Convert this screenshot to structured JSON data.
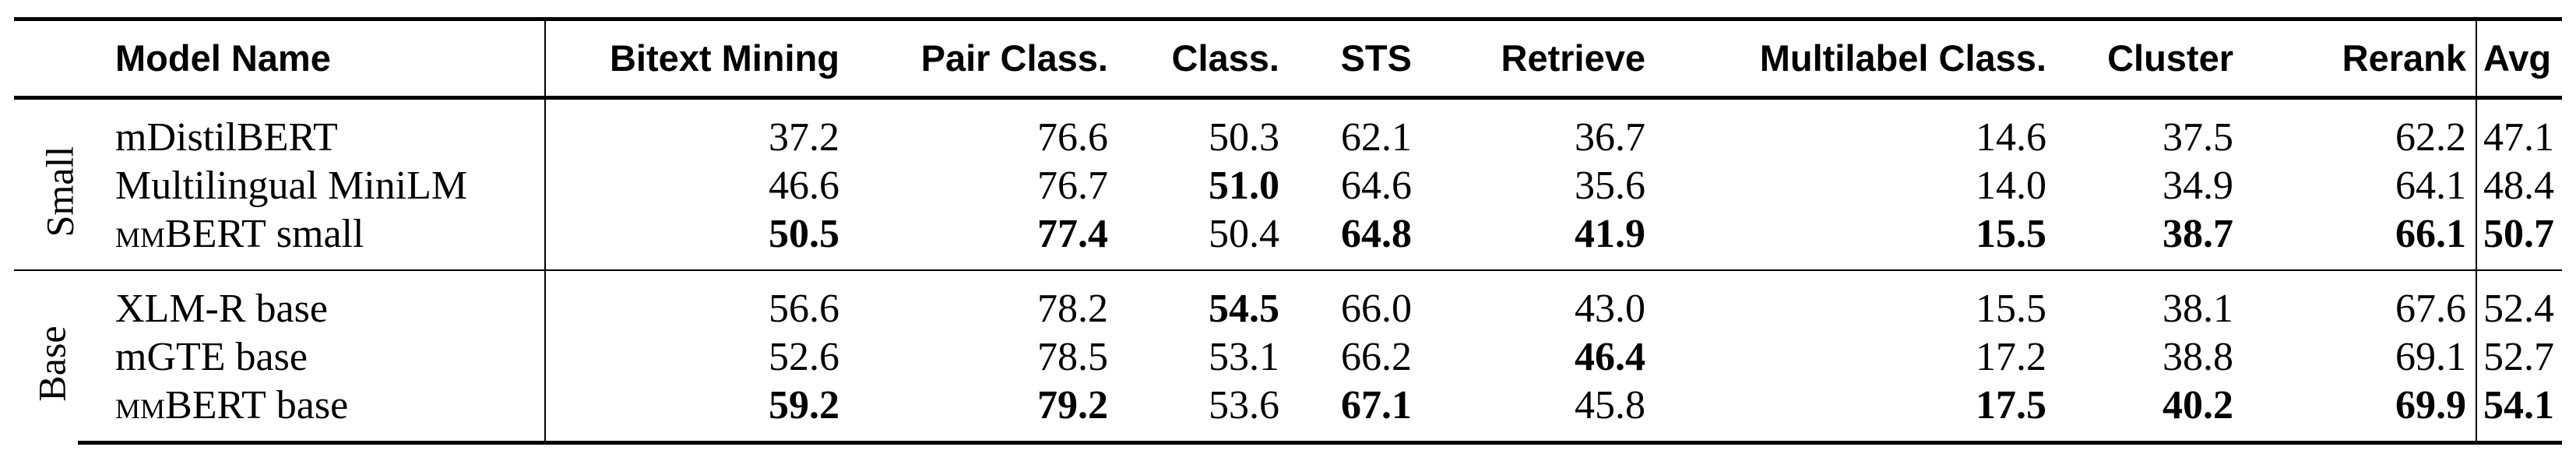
{
  "headers": {
    "model_name": "Model Name",
    "bitext_mining": "Bitext Mining",
    "pair_class": "Pair Class.",
    "class": "Class.",
    "sts": "STS",
    "retrieve": "Retrieve",
    "multilabel_class": "Multilabel Class.",
    "cluster": "Cluster",
    "rerank": "Rerank",
    "avg": "Avg"
  },
  "groups": [
    {
      "label": "Small",
      "rows": [
        {
          "name_prefix": "",
          "name": "mDistilBERT",
          "bitext": "37.2",
          "pair": "76.6",
          "class": "50.3",
          "sts": "62.1",
          "retrieve": "36.7",
          "multilabel": "14.6",
          "cluster": "37.5",
          "rerank": "62.2",
          "avg": "47.1"
        },
        {
          "name_prefix": "",
          "name": "Multilingual MiniLM",
          "bitext": "46.6",
          "pair": "76.7",
          "class": "51.0",
          "sts": "64.6",
          "retrieve": "35.6",
          "multilabel": "14.0",
          "cluster": "34.9",
          "rerank": "64.1",
          "avg": "48.4"
        },
        {
          "name_prefix": "mmBERT",
          "name": " small",
          "bitext": "50.5",
          "pair": "77.4",
          "class": "50.4",
          "sts": "64.8",
          "retrieve": "41.9",
          "multilabel": "15.5",
          "cluster": "38.7",
          "rerank": "66.1",
          "avg": "50.7"
        }
      ]
    },
    {
      "label": "Base",
      "rows": [
        {
          "name_prefix": "",
          "name": "XLM-R base",
          "bitext": "56.6",
          "pair": "78.2",
          "class": "54.5",
          "sts": "66.0",
          "retrieve": "43.0",
          "multilabel": "15.5",
          "cluster": "38.1",
          "rerank": "67.6",
          "avg": "52.4"
        },
        {
          "name_prefix": "",
          "name": "mGTE base",
          "bitext": "52.6",
          "pair": "78.5",
          "class": "53.1",
          "sts": "66.2",
          "retrieve": "46.4",
          "multilabel": "17.2",
          "cluster": "38.8",
          "rerank": "69.1",
          "avg": "52.7"
        },
        {
          "name_prefix": "mmBERT",
          "name": " base",
          "bitext": "59.2",
          "pair": "79.2",
          "class": "53.6",
          "sts": "67.1",
          "retrieve": "45.8",
          "multilabel": "17.5",
          "cluster": "40.2",
          "rerank": "69.9",
          "avg": "54.1"
        }
      ]
    }
  ]
}
